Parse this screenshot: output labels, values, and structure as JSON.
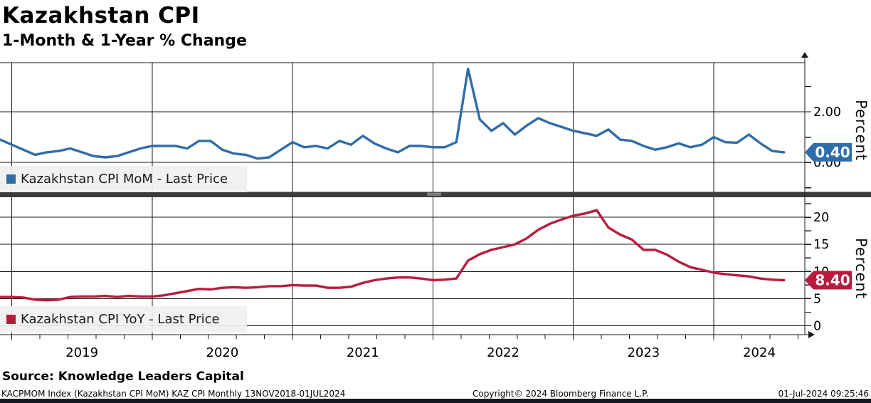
{
  "header": {
    "title": "Kazakhstan CPI",
    "subtitle": "1-Month & 1-Year % Change"
  },
  "footer": {
    "source": "Source: Knowledge Leaders Capital",
    "ticker_info": "KACPMOM Index (Kazakhstan CPI MoM) KAZ CPI  Monthly 13NOV2018-01JUL2024",
    "copyright": "Copyright© 2024 Bloomberg Finance L.P.",
    "timestamp": "01-Jul-2024 09:25:46"
  },
  "chart_data": [
    {
      "type": "line",
      "panel": "top",
      "start_month": "2018-11",
      "frequency": "monthly",
      "series": [
        {
          "name": "Kazakhstan CPI MoM - Last Price",
          "color": "#2F6DA8",
          "values": [
            0.9,
            0.7,
            0.5,
            0.3,
            0.4,
            0.45,
            0.55,
            0.4,
            0.25,
            0.2,
            0.25,
            0.4,
            0.55,
            0.65,
            0.65,
            0.65,
            0.55,
            0.85,
            0.85,
            0.5,
            0.35,
            0.3,
            0.15,
            0.2,
            0.5,
            0.8,
            0.6,
            0.65,
            0.55,
            0.85,
            0.7,
            1.05,
            0.75,
            0.55,
            0.4,
            0.65,
            0.65,
            0.6,
            0.6,
            0.8,
            3.7,
            1.7,
            1.25,
            1.55,
            1.1,
            1.45,
            1.75,
            1.55,
            1.4,
            1.25,
            1.15,
            1.05,
            1.3,
            0.9,
            0.85,
            0.65,
            0.5,
            0.6,
            0.75,
            0.6,
            0.7,
            1.0,
            0.8,
            0.78,
            1.1,
            0.75,
            0.45,
            0.4
          ]
        }
      ],
      "last_price_label": "0.40",
      "ylabel": "Percent",
      "ylim": [
        -1.18,
        3.94
      ],
      "yticks_labeled": [
        2,
        0
      ],
      "ytick_labels": [
        "2.00",
        "0.00"
      ],
      "yticks_minor": [
        3,
        1,
        -1
      ],
      "grid": true,
      "legend_position": "bottom-left"
    },
    {
      "type": "line",
      "panel": "bottom",
      "start_month": "2018-11",
      "frequency": "monthly",
      "series": [
        {
          "name": "Kazakhstan CPI YoY - Last Price",
          "color": "#B81C3C",
          "values": [
            5.3,
            5.3,
            5.2,
            4.8,
            4.7,
            4.8,
            5.3,
            5.4,
            5.4,
            5.5,
            5.3,
            5.5,
            5.4,
            5.4,
            5.6,
            6.0,
            6.4,
            6.8,
            6.7,
            7.0,
            7.1,
            7.0,
            7.1,
            7.3,
            7.3,
            7.5,
            7.4,
            7.4,
            7.0,
            7.0,
            7.2,
            7.9,
            8.4,
            8.7,
            8.9,
            8.9,
            8.7,
            8.4,
            8.5,
            8.7,
            12.0,
            13.2,
            14.0,
            14.5,
            15.0,
            16.1,
            17.7,
            18.8,
            19.6,
            20.3,
            20.7,
            21.3,
            18.1,
            16.8,
            15.9,
            14.0,
            14.0,
            13.1,
            11.8,
            10.8,
            10.3,
            9.8,
            9.5,
            9.3,
            9.1,
            8.7,
            8.5,
            8.4
          ]
        }
      ],
      "last_price_label": "8.40",
      "ylabel": "Percent",
      "ylim": [
        0,
        23.7
      ],
      "yticks_labeled": [
        20,
        15,
        10,
        5,
        0
      ],
      "ytick_labels": [
        "20",
        "15",
        "10",
        "5",
        "0"
      ],
      "yticks_minor": [
        22.5,
        17.5,
        12.5,
        7.5,
        2.5
      ],
      "grid": true,
      "legend_position": "bottom-left"
    }
  ],
  "x_axis": {
    "year_labels": [
      "2019",
      "2020",
      "2021",
      "2022",
      "2023",
      "2024"
    ]
  }
}
